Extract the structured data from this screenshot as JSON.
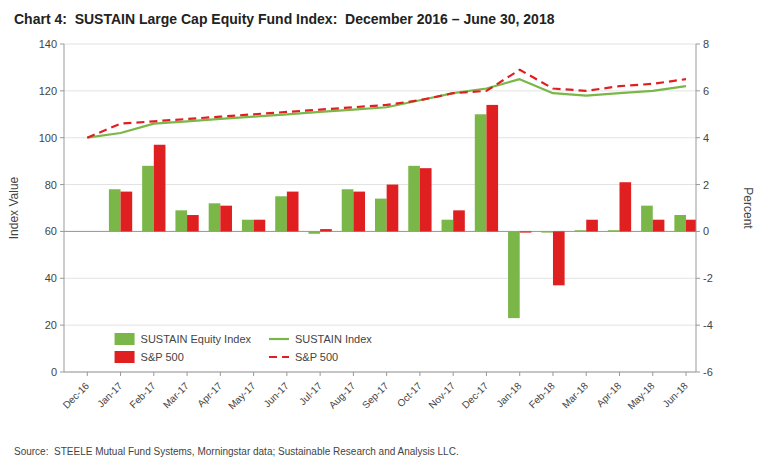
{
  "chart_data": {
    "type": "bar",
    "title": "Chart 4:  SUSTAIN Large Cap Equity Fund Index:  December 2016 – June 30, 2018",
    "annotations": [
      "Source:  STEELE Mutual Fund Systems, Morningstar data; Sustainable Research and Analysis LLC."
    ],
    "categories": [
      "Dec-16",
      "Jan-17",
      "Feb-17",
      "Mar-17",
      "Apr-17",
      "May-17",
      "Jun-17",
      "Jul-17",
      "Aug-17",
      "Sep-17",
      "Oct-17",
      "Nov-17",
      "Dec-17",
      "Jan-18",
      "Feb-18",
      "Mar-18",
      "Apr-18",
      "May-18",
      "Jun-18"
    ],
    "series": [
      {
        "name": "SUSTAIN Equity Index",
        "type": "bar",
        "axis": "y2",
        "color": "#7ab648",
        "values": [
          null,
          1.8,
          2.8,
          0.9,
          1.2,
          0.5,
          1.5,
          -0.1,
          1.8,
          1.4,
          2.8,
          0.5,
          5.0,
          -3.7,
          -0.05,
          0.05,
          0.05,
          1.1,
          0.7
        ]
      },
      {
        "name": "S&P 500",
        "type": "bar",
        "axis": "y2",
        "color": "#e02020",
        "values": [
          null,
          1.7,
          3.7,
          0.7,
          1.1,
          0.5,
          1.7,
          0.1,
          1.7,
          2.0,
          2.7,
          0.9,
          5.4,
          -0.05,
          -2.3,
          0.5,
          2.1,
          0.5,
          0.5
        ]
      },
      {
        "name": "SUSTAIN Index",
        "type": "line",
        "line_style": "solid",
        "color": "#7ab648",
        "values": [
          100,
          102,
          106,
          107,
          108,
          109,
          110,
          111,
          112,
          113,
          116,
          119,
          121,
          125,
          119,
          118,
          119,
          120,
          122
        ]
      },
      {
        "name": "S&P 500",
        "type": "line",
        "line_style": "dashed",
        "color": "#e02020",
        "values": [
          100,
          106,
          107,
          108,
          109,
          110,
          111,
          112,
          113,
          114,
          116,
          119,
          120,
          129,
          121,
          120,
          122,
          123,
          125
        ]
      }
    ],
    "ylabel": "Index Value",
    "y2label": "Percent",
    "ylim": [
      0,
      140
    ],
    "yticks": [
      0,
      20,
      40,
      60,
      80,
      100,
      120,
      140
    ],
    "y2lim": [
      -6,
      8
    ],
    "y2ticks": [
      -6,
      -4,
      -2,
      0,
      2,
      4,
      6,
      8
    ],
    "grid": true,
    "legend": "lower left"
  }
}
